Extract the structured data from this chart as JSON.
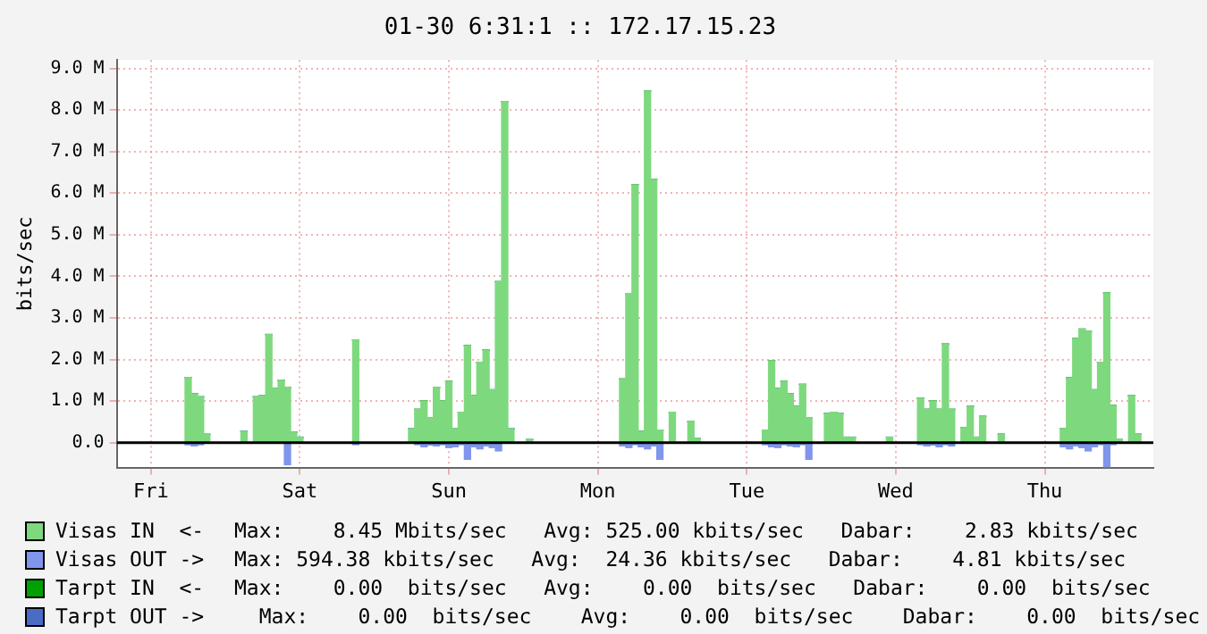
{
  "chart_data": {
    "type": "bar",
    "stacked": true,
    "title": "01-30 6:31:1 :: 172.17.15.23",
    "ylabel": "bits/sec",
    "categories": [
      null,
      null,
      null,
      null,
      null,
      "Fri",
      null,
      null,
      null,
      null,
      null,
      null,
      null,
      null,
      null,
      null,
      null,
      null,
      null,
      null,
      null,
      null,
      null,
      null,
      null,
      null,
      null,
      null,
      null,
      "Sat",
      null,
      null,
      null,
      null,
      null,
      null,
      null,
      null,
      null,
      null,
      null,
      null,
      null,
      null,
      null,
      null,
      null,
      null,
      null,
      null,
      null,
      null,
      null,
      "Sun",
      null,
      null,
      null,
      null,
      null,
      null,
      null,
      null,
      null,
      null,
      null,
      null,
      null,
      null,
      null,
      null,
      null,
      null,
      null,
      null,
      null,
      null,
      null,
      "Mon",
      null,
      null,
      null,
      null,
      null,
      null,
      null,
      null,
      null,
      null,
      null,
      null,
      null,
      null,
      null,
      null,
      null,
      null,
      null,
      null,
      null,
      null,
      null,
      "Tue",
      null,
      null,
      null,
      null,
      null,
      null,
      null,
      null,
      null,
      null,
      null,
      null,
      null,
      null,
      null,
      null,
      null,
      null,
      null,
      null,
      null,
      null,
      null,
      "Wed",
      null,
      null,
      null,
      null,
      null,
      null,
      null,
      null,
      null,
      null,
      null,
      null,
      null,
      null,
      null,
      null,
      null,
      null,
      null,
      null,
      null,
      null,
      null,
      "Thu",
      null,
      null,
      null,
      null,
      null,
      null,
      null,
      null,
      null,
      null,
      null,
      null,
      null,
      null,
      null,
      null,
      null
    ],
    "ylim": [
      -0.6,
      9.2
    ],
    "yticks": [
      {
        "value": 0,
        "label": "0.0"
      },
      {
        "value": 1,
        "label": "1.0 M"
      },
      {
        "value": 2,
        "label": "2.0 M"
      },
      {
        "value": 3,
        "label": "3.0 M"
      },
      {
        "value": 4,
        "label": "4.0 M"
      },
      {
        "value": 5,
        "label": "5.0 M"
      },
      {
        "value": 6,
        "label": "6.0 M"
      },
      {
        "value": 7,
        "label": "7.0 M"
      },
      {
        "value": 8,
        "label": "8.0 M"
      },
      {
        "value": 9,
        "label": "9.0 M"
      }
    ],
    "grid": true,
    "legend": "bottom",
    "annotations": [
      "Max:    8.45 Mbits/sec   Avg: 525.00 kbits/sec   Dabar:    2.83 kbits/sec",
      "Max: 594.38 kbits/sec   Avg:  24.36 kbits/sec   Dabar:    4.81 kbits/sec",
      "Max:    0.00  bits/sec   Avg:    0.00  bits/sec   Dabar:    0.00  bits/sec",
      "  Max:    0.00  bits/sec    Avg:    0.00  bits/sec    Dabar:    0.00  bits/sec"
    ],
    "series": [
      {
        "name": "Visas IN  <-",
        "color": "#7ed97e",
        "values": [
          0,
          0,
          0,
          0,
          0,
          0,
          0,
          0,
          0,
          0,
          0,
          1.57,
          1.17,
          1.1,
          0.2,
          0,
          0,
          0,
          0,
          0,
          0.27,
          0,
          1.1,
          1.13,
          2.6,
          1.3,
          1.5,
          1.33,
          0.25,
          0.13,
          0,
          0,
          0,
          0,
          0,
          0,
          0,
          0,
          2.47,
          0,
          0,
          0,
          0,
          0,
          0,
          0,
          0,
          0.33,
          0.8,
          1.0,
          0.6,
          1.33,
          1.0,
          1.47,
          0.33,
          0.73,
          2.33,
          1.13,
          1.93,
          2.23,
          1.27,
          3.87,
          8.2,
          0.33,
          0,
          0,
          0.07,
          0,
          0,
          0,
          0,
          0,
          0,
          0,
          0,
          0,
          0,
          0,
          0,
          0,
          0,
          1.53,
          3.57,
          6.2,
          0.27,
          8.45,
          6.33,
          0.3,
          0,
          0.73,
          0,
          0,
          0.5,
          0.1,
          0,
          0,
          0,
          0,
          0,
          0,
          0,
          0,
          0,
          0,
          0.3,
          1.97,
          1.3,
          1.47,
          1.17,
          0.87,
          1.4,
          0.6,
          0,
          0,
          0.7,
          0.73,
          0.7,
          0.13,
          0.13,
          0,
          0,
          0,
          0,
          0,
          0.13,
          0,
          0,
          0,
          0,
          1.07,
          0.8,
          1.0,
          0.8,
          2.37,
          0.8,
          0,
          0.36,
          0.87,
          0.13,
          0.63,
          0,
          0,
          0.2,
          0,
          0,
          0,
          0,
          0,
          0,
          0,
          0,
          0,
          0.33,
          1.56,
          2.5,
          2.73,
          2.67,
          1.27,
          1.93,
          3.6,
          0.89,
          0.07,
          0,
          1.13,
          0.2,
          0,
          0
        ]
      },
      {
        "name": "Visas OUT ->",
        "color": "#7f96ec",
        "values": [
          0,
          0,
          0,
          0,
          0,
          0,
          0,
          0,
          0,
          0,
          0,
          -0.05,
          -0.08,
          -0.05,
          0,
          0,
          0,
          0,
          0,
          0,
          0,
          0,
          0,
          0,
          0,
          0,
          0,
          -0.53,
          0,
          0,
          0,
          0,
          0,
          0,
          0,
          0,
          0,
          0,
          -0.05,
          0,
          0,
          0,
          0,
          0,
          0,
          0,
          0,
          0,
          -0.05,
          -0.1,
          -0.06,
          -0.08,
          -0.05,
          -0.12,
          -0.1,
          -0.05,
          -0.4,
          -0.1,
          -0.15,
          -0.08,
          -0.12,
          -0.2,
          0,
          0,
          0,
          0,
          0,
          0,
          0,
          0,
          0,
          0,
          0,
          0,
          0,
          0,
          0,
          0,
          0,
          0,
          0,
          -0.08,
          -0.12,
          -0.05,
          -0.1,
          -0.15,
          -0.08,
          -0.4,
          0,
          0,
          0,
          0,
          0,
          0,
          0,
          0,
          0,
          0,
          0,
          0,
          0,
          0,
          0,
          0,
          -0.05,
          -0.1,
          -0.12,
          -0.05,
          -0.08,
          -0.1,
          -0.05,
          -0.4,
          0,
          0,
          0,
          0,
          0,
          0,
          0,
          0,
          0,
          0,
          0,
          0,
          0,
          0,
          0,
          0,
          0,
          -0.05,
          -0.08,
          -0.06,
          -0.1,
          -0.05,
          -0.08,
          0,
          0,
          0,
          0,
          0,
          0,
          0,
          0,
          0,
          0,
          0,
          0,
          0,
          0,
          0,
          0,
          0,
          -0.1,
          -0.15,
          -0.08,
          -0.12,
          -0.2,
          -0.1,
          -0.05,
          -0.59,
          -0.05,
          0,
          0,
          0,
          0,
          0,
          0
        ]
      },
      {
        "name": "Tarpt IN  <-",
        "color": "#00a000",
        "values": [
          0,
          0,
          0,
          0,
          0,
          0,
          0,
          0,
          0,
          0,
          0,
          0,
          0,
          0,
          0,
          0,
          0,
          0,
          0,
          0,
          0,
          0,
          0,
          0,
          0,
          0,
          0,
          0,
          0,
          0,
          0,
          0,
          0,
          0,
          0,
          0,
          0,
          0,
          0,
          0,
          0,
          0,
          0,
          0,
          0,
          0,
          0,
          0,
          0,
          0,
          0,
          0,
          0,
          0,
          0,
          0,
          0,
          0,
          0,
          0,
          0,
          0,
          0,
          0,
          0,
          0,
          0,
          0,
          0,
          0,
          0,
          0,
          0,
          0,
          0,
          0,
          0,
          0,
          0,
          0,
          0,
          0,
          0,
          0,
          0,
          0,
          0,
          0,
          0,
          0,
          0,
          0,
          0,
          0,
          0,
          0,
          0,
          0,
          0,
          0,
          0,
          0,
          0,
          0,
          0,
          0,
          0,
          0,
          0,
          0,
          0,
          0,
          0,
          0,
          0,
          0,
          0,
          0,
          0,
          0,
          0,
          0,
          0,
          0,
          0,
          0,
          0,
          0,
          0,
          0,
          0,
          0,
          0,
          0,
          0,
          0,
          0,
          0,
          0,
          0,
          0,
          0,
          0,
          0,
          0,
          0,
          0,
          0,
          0,
          0,
          0,
          0,
          0,
          0,
          0,
          0,
          0,
          0,
          0,
          0,
          0,
          0,
          0,
          0,
          0,
          0,
          0
        ]
      },
      {
        "name": "Tarpt OUT ->",
        "color": "#4a6cc4",
        "values": [
          0,
          0,
          0,
          0,
          0,
          0,
          0,
          0,
          0,
          0,
          0,
          0,
          0,
          0,
          0,
          0,
          0,
          0,
          0,
          0,
          0,
          0,
          0,
          0,
          0,
          0,
          0,
          0,
          0,
          0,
          0,
          0,
          0,
          0,
          0,
          0,
          0,
          0,
          0,
          0,
          0,
          0,
          0,
          0,
          0,
          0,
          0,
          0,
          0,
          0,
          0,
          0,
          0,
          0,
          0,
          0,
          0,
          0,
          0,
          0,
          0,
          0,
          0,
          0,
          0,
          0,
          0,
          0,
          0,
          0,
          0,
          0,
          0,
          0,
          0,
          0,
          0,
          0,
          0,
          0,
          0,
          0,
          0,
          0,
          0,
          0,
          0,
          0,
          0,
          0,
          0,
          0,
          0,
          0,
          0,
          0,
          0,
          0,
          0,
          0,
          0,
          0,
          0,
          0,
          0,
          0,
          0,
          0,
          0,
          0,
          0,
          0,
          0,
          0,
          0,
          0,
          0,
          0,
          0,
          0,
          0,
          0,
          0,
          0,
          0,
          0,
          0,
          0,
          0,
          0,
          0,
          0,
          0,
          0,
          0,
          0,
          0,
          0,
          0,
          0,
          0,
          0,
          0,
          0,
          0,
          0,
          0,
          0,
          0,
          0,
          0,
          0,
          0,
          0,
          0,
          0,
          0,
          0,
          0,
          0,
          0,
          0,
          0,
          0,
          0,
          0,
          0
        ]
      }
    ]
  }
}
